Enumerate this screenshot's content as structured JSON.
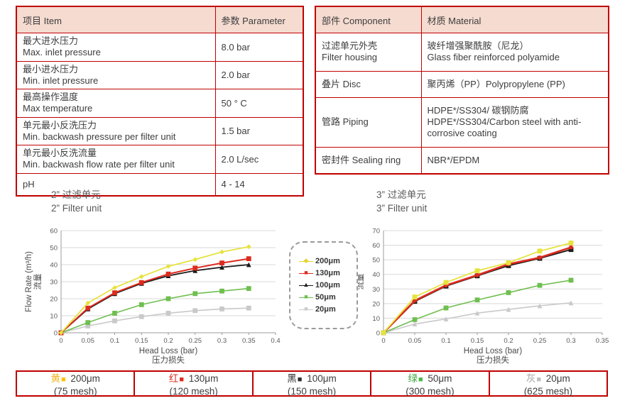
{
  "spec_table": {
    "headers": [
      "项目 Item",
      "参数 Parameter"
    ],
    "rows": [
      {
        "cn": "最大进水压力",
        "en": "Max. inlet pressure",
        "value": "8.0 bar"
      },
      {
        "cn": "最小进水压力",
        "en": "Min. inlet pressure",
        "value": "2.0 bar"
      },
      {
        "cn": "最高操作温度",
        "en": "Max temperature",
        "value": "50 ° C"
      },
      {
        "cn": "单元最小反洗压力",
        "en": "Min. backwash pressure per filter unit",
        "value": "1.5 bar"
      },
      {
        "cn": "单元最小反洗流量",
        "en": "Min. backwash flow rate per filter unit",
        "value": "2.0 L/sec"
      },
      {
        "cn": "pH",
        "en": null,
        "value": "4 - 14"
      }
    ]
  },
  "material_table": {
    "headers": [
      "部件 Component",
      "材质 Material"
    ],
    "rows": [
      {
        "cn": "过滤单元外壳",
        "en": "Filter housing",
        "mat_cn": "玻纤增强聚酰胺（尼龙）",
        "mat_en": "Glass fiber reinforced polyamide"
      },
      {
        "cn": "叠片 Disc",
        "en": null,
        "mat_cn": "聚丙烯（PP）Polypropylene (PP)",
        "mat_en": null
      },
      {
        "cn": "管路 Piping",
        "en": null,
        "mat_cn": "HDPE*/SS304/ 碳钢防腐",
        "mat_en": "HDPE*/SS304/Carbon steel with anti-corrosive coating"
      },
      {
        "cn": "密封件 Sealing ring",
        "en": null,
        "mat_cn": "NBR*/EPDM",
        "mat_en": null
      }
    ]
  },
  "chart_data": [
    {
      "type": "line",
      "title_cn": "2”  过滤单元",
      "title_en": "2”  Filter unit",
      "xlabel": "Head Loss (bar)",
      "xlabel_cn": "压力损失",
      "ylabel_cn": "流量",
      "ylabel": "Flow Rate (m³/h)",
      "xlim": [
        0,
        0.4
      ],
      "ylim": [
        0,
        60
      ],
      "xtick": 0.05,
      "ytick": 10,
      "x": [
        0,
        0.05,
        0.1,
        0.15,
        0.2,
        0.25,
        0.3,
        0.35
      ],
      "series": [
        {
          "name": "200μm",
          "color": "#e6e33e",
          "marker": "diamond",
          "width": 1.8,
          "values": [
            0,
            17.5,
            26.5,
            33,
            39,
            43,
            47.5,
            50.5
          ]
        },
        {
          "name": "130μm",
          "color": "#dd2b1e",
          "marker": "square",
          "width": 2,
          "values": [
            0,
            14.5,
            23.5,
            29.5,
            34.5,
            38,
            41,
            43.5
          ]
        },
        {
          "name": "100μm",
          "color": "#1a1a1a",
          "marker": "triangle",
          "width": 1.8,
          "values": [
            0,
            14,
            23,
            29,
            33.5,
            36.5,
            38.5,
            40
          ]
        },
        {
          "name": "50μm",
          "color": "#6fbf4f",
          "marker": "square",
          "width": 1.6,
          "values": [
            0,
            6,
            11.5,
            16.5,
            20,
            23,
            24.5,
            26
          ]
        },
        {
          "name": "20μm",
          "color": "#c9c9c9",
          "marker": "square",
          "width": 1.6,
          "values": [
            0,
            4,
            7,
            9.5,
            11.5,
            13,
            14,
            14.5
          ]
        }
      ]
    },
    {
      "type": "line",
      "title_cn": "3”  过滤单元",
      "title_en": "3”  Filter unit",
      "xlabel": "Head Loss (bar)",
      "xlabel_cn": "压力损失",
      "ylabel_cn": "流量",
      "ylabel": "Flow Rate (m³/h)",
      "xlim": [
        0,
        0.35
      ],
      "ylim": [
        0,
        70
      ],
      "xtick": 0.05,
      "ytick": 10,
      "x": [
        0,
        0.05,
        0.1,
        0.15,
        0.2,
        0.25,
        0.3
      ],
      "series": [
        {
          "name": "200μm",
          "color": "#e6e33e",
          "marker": "square",
          "width": 1.8,
          "values": [
            0,
            24.5,
            34.5,
            42.5,
            48,
            56,
            61.5
          ]
        },
        {
          "name": "130μm",
          "color": "#dd2b1e",
          "marker": "circle",
          "width": 2.6,
          "values": [
            0,
            22,
            32.5,
            39.5,
            47,
            51.5,
            58.5
          ]
        },
        {
          "name": "100μm",
          "color": "#1a1a1a",
          "marker": "square",
          "width": 1.8,
          "values": [
            0,
            21.5,
            32,
            39,
            46,
            51,
            57
          ]
        },
        {
          "name": "50μm",
          "color": "#6fbf4f",
          "marker": "square",
          "width": 1.6,
          "values": [
            0,
            9,
            17,
            22.5,
            27.5,
            32.5,
            36
          ]
        },
        {
          "name": "20μm",
          "color": "#c9c9c9",
          "marker": "triangle",
          "width": 1.6,
          "values": [
            0,
            6,
            9.5,
            13.5,
            16,
            18.5,
            20.5
          ]
        }
      ]
    }
  ],
  "legend": {
    "items": [
      {
        "label": "200μm",
        "color": "#e6d32e",
        "glyph": "◆"
      },
      {
        "label": "130μm",
        "color": "#dd2b1e",
        "glyph": "■"
      },
      {
        "label": "100μm",
        "color": "#1a1a1a",
        "glyph": "▲"
      },
      {
        "label": "50μm",
        "color": "#6fbf4f",
        "glyph": "■"
      },
      {
        "label": "20μm",
        "color": "#c9c9c9",
        "glyph": "■"
      }
    ]
  },
  "footer": {
    "cells": [
      {
        "cn": "黄",
        "color": "#f0b41e",
        "square": "■",
        "swatch": "#ffc000",
        "label": " 200μm",
        "mesh": "(75 mesh)"
      },
      {
        "cn": "红",
        "color": "#e02a20",
        "square": "■",
        "swatch": "#e02a20",
        "label": " 130μm",
        "mesh": "(120 mesh)"
      },
      {
        "cn": "黑",
        "color": "#2d2d2d",
        "square": "■",
        "swatch": "#2d2d2d",
        "label": " 100μm",
        "mesh": "(150 mesh)"
      },
      {
        "cn": "绿",
        "color": "#3fa53f",
        "square": "■",
        "swatch": "#4cb84c",
        "label": " 50μm",
        "mesh": "(300 mesh)"
      },
      {
        "cn": "灰",
        "color": "#a6a6a6",
        "square": "■",
        "swatch": "#bfbfbf",
        "label": " 20μm",
        "mesh": "(625 mesh)"
      }
    ]
  }
}
